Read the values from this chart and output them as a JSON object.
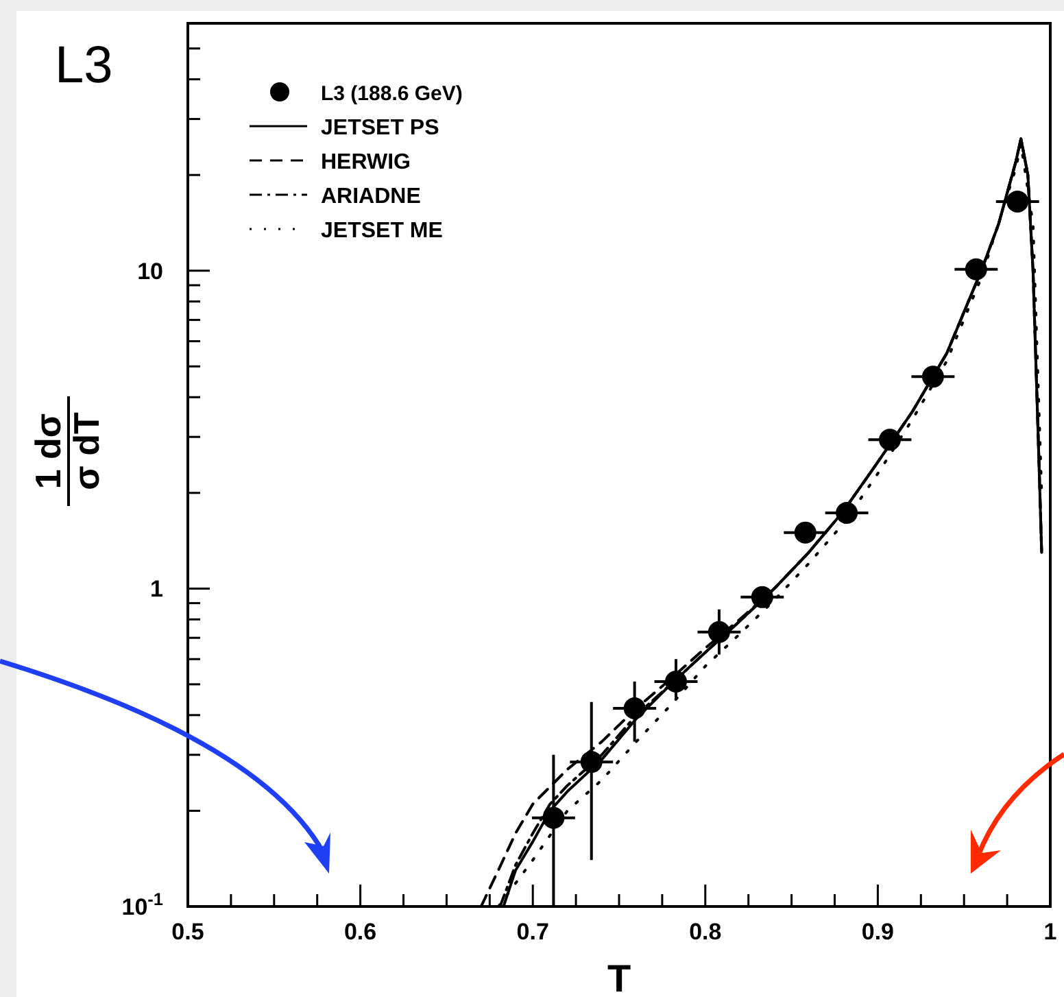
{
  "chart_data": {
    "type": "line",
    "xlabel": "T",
    "ylabel": "1 dσ σ dT",
    "log": "y",
    "legend": "top left",
    "annotations": [
      "L3"
    ],
    "xlim": [
      0.5,
      1.0
    ],
    "xticks": [
      0.5,
      {
        "value": 0.525,
        "label": null
      },
      {
        "value": 0.55,
        "label": null
      },
      {
        "value": 0.575,
        "label": null
      },
      0.6,
      {
        "value": 0.625,
        "label": null
      },
      {
        "value": 0.65,
        "label": null
      },
      {
        "value": 0.675,
        "label": null
      },
      0.7,
      {
        "value": 0.725,
        "label": null
      },
      {
        "value": 0.75,
        "label": null
      },
      {
        "value": 0.775,
        "label": null
      },
      0.8,
      {
        "value": 0.825,
        "label": null
      },
      {
        "value": 0.85,
        "label": null
      },
      {
        "value": 0.875,
        "label": null
      },
      0.9,
      {
        "value": 0.925,
        "label": null
      },
      {
        "value": 0.95,
        "label": null
      },
      {
        "value": 0.975,
        "label": null
      },
      {
        "value": 1.0,
        "label": "1"
      }
    ],
    "ylim": [
      0.1,
      60
    ],
    "yticks": [
      {
        "value": 0.1,
        "label": "10$^{-1}$"
      },
      {
        "value": 0.2,
        "label": null
      },
      {
        "value": 0.3,
        "label": null
      },
      {
        "value": 0.4,
        "label": null
      },
      {
        "value": 0.5,
        "label": null
      },
      {
        "value": 0.6,
        "label": null
      },
      {
        "value": 0.7,
        "label": null
      },
      {
        "value": 0.8,
        "label": null
      },
      {
        "value": 0.9,
        "label": null
      },
      1,
      {
        "value": 2,
        "label": null
      },
      {
        "value": 3,
        "label": null
      },
      {
        "value": 4,
        "label": null
      },
      {
        "value": 5,
        "label": null
      },
      {
        "value": 6,
        "label": null
      },
      {
        "value": 7,
        "label": null
      },
      {
        "value": 8,
        "label": null
      },
      {
        "value": 9,
        "label": null
      },
      10,
      {
        "value": 20,
        "label": null
      },
      {
        "value": 30,
        "label": null
      },
      {
        "value": 40,
        "label": null
      },
      {
        "value": 50,
        "label": null
      },
      {
        "value": 60,
        "label": null
      }
    ],
    "series": [
      {
        "name": "L3 (188.6 GeV)",
        "type": "scatter",
        "marker": "circle",
        "color": "#000000",
        "x": [
          0.712,
          0.734,
          0.759,
          0.783,
          0.808,
          0.833,
          0.858,
          0.882,
          0.907,
          0.932,
          0.957,
          0.981
        ],
        "values": [
          0.19,
          0.285,
          0.42,
          0.51,
          0.73,
          0.94,
          1.5,
          1.73,
          2.94,
          4.64,
          10.1,
          16.5
        ],
        "errors": [
          [
            0.1,
            0.3
          ],
          [
            0.14,
            0.44
          ],
          [
            0.33,
            0.51
          ],
          [
            0.45,
            0.6
          ],
          [
            0.62,
            0.86
          ],
          null,
          null,
          null,
          null,
          null,
          null,
          null
        ],
        "xerrors": [
          0.0125,
          0.0125,
          0.0125,
          0.0125,
          0.0125,
          0.0125,
          0.0125,
          0.0125,
          0.0125,
          0.0125,
          0.0125,
          0.0125
        ]
      },
      {
        "name": "JETSET PS",
        "line_style": "solid",
        "color": "#000000",
        "x": [
          0.683,
          0.69,
          0.7,
          0.71,
          0.72,
          0.74,
          0.76,
          0.78,
          0.8,
          0.82,
          0.84,
          0.86,
          0.88,
          0.9,
          0.92,
          0.94,
          0.96,
          0.97,
          0.98,
          0.983,
          0.987,
          0.99,
          0.993,
          0.995
        ],
        "values": [
          0.1,
          0.13,
          0.16,
          0.2,
          0.23,
          0.29,
          0.39,
          0.5,
          0.63,
          0.79,
          1.0,
          1.3,
          1.75,
          2.5,
          3.6,
          5.5,
          10,
          14,
          22,
          26,
          20,
          10,
          3,
          1.3
        ]
      },
      {
        "name": "HERWIG",
        "line_style": "dashed",
        "color": "#000000",
        "x": [
          0.67,
          0.68,
          0.69,
          0.7,
          0.72,
          0.74,
          0.76,
          0.78,
          0.8,
          0.82,
          0.84,
          0.86,
          0.88,
          0.9,
          0.92,
          0.94,
          0.96,
          0.97,
          0.98,
          0.983,
          0.987,
          0.99,
          0.993,
          0.995
        ],
        "values": [
          0.1,
          0.13,
          0.17,
          0.21,
          0.27,
          0.33,
          0.42,
          0.52,
          0.65,
          0.8,
          1.0,
          1.3,
          1.75,
          2.5,
          3.6,
          5.5,
          10,
          14,
          22,
          26,
          20,
          10,
          3,
          1.3
        ]
      },
      {
        "name": "ARIADNE",
        "line_style": "dashdot",
        "color": "#000000",
        "x": [
          0.681,
          0.69,
          0.7,
          0.71,
          0.72,
          0.74,
          0.76,
          0.78,
          0.8,
          0.82,
          0.84,
          0.86,
          0.88,
          0.9,
          0.92,
          0.94,
          0.96,
          0.97,
          0.98,
          0.983,
          0.987,
          0.99,
          0.993,
          0.995
        ],
        "values": [
          0.1,
          0.135,
          0.17,
          0.21,
          0.24,
          0.3,
          0.4,
          0.5,
          0.63,
          0.79,
          1.0,
          1.3,
          1.75,
          2.5,
          3.6,
          5.5,
          10,
          14,
          22,
          26,
          20,
          10,
          3,
          1.3
        ]
      },
      {
        "name": "JETSET ME",
        "line_style": "dotted",
        "color": "#000000",
        "x": [
          0.68,
          0.7,
          0.72,
          0.74,
          0.76,
          0.78,
          0.8,
          0.82,
          0.84,
          0.86,
          0.88,
          0.9,
          0.92,
          0.94,
          0.96,
          0.98,
          0.983,
          0.99,
          0.995
        ],
        "values": [
          0.1,
          0.14,
          0.2,
          0.25,
          0.33,
          0.43,
          0.57,
          0.72,
          0.92,
          1.2,
          1.6,
          2.3,
          3.4,
          5.2,
          9.5,
          21,
          25,
          14,
          2
        ]
      }
    ]
  }
}
